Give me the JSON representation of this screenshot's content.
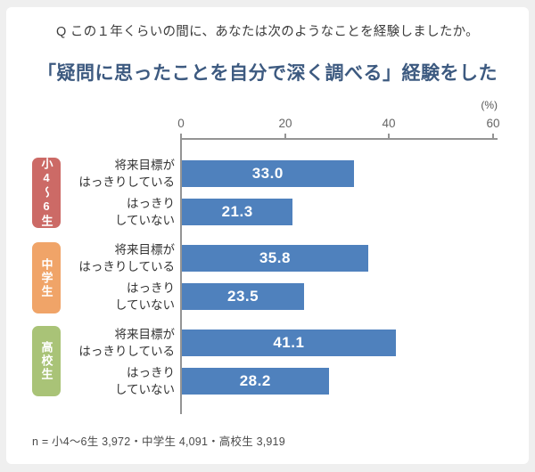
{
  "page": {
    "question": "Q この１年くらいの間に、あなたは次のようなことを経験しましたか。",
    "footnote": "n = 小4〜6生 3,972・中学生 4,091・高校生 3,919"
  },
  "colors": {
    "background": "#efefef",
    "card": "#ffffff",
    "title_text": "#3d5a80",
    "bar": "#4f81bd",
    "badge_elementary": "#cc6a66",
    "badge_junior_high": "#f0a468",
    "badge_high_school": "#a9c377",
    "axis": "#949494"
  },
  "chart_data": {
    "type": "bar",
    "orientation": "horizontal",
    "title": "「疑問に思ったことを自分で深く調べる」経験をした",
    "unit": "%",
    "unit_label": "(%)",
    "xlim": [
      0,
      60
    ],
    "x_ticks": [
      "0",
      "20",
      "40",
      "60"
    ],
    "grid": false,
    "legend": false,
    "bar_color": "#4f81bd",
    "groups": [
      {
        "name": "小4〜6生",
        "badge_color": "#cc6a66",
        "n": "3,972",
        "bars": [
          {
            "label": "将来目標が\nはっきりしている",
            "value": 33.0,
            "display": "33.0"
          },
          {
            "label": "はっきり\nしていない",
            "value": 21.3,
            "display": "21.3"
          }
        ]
      },
      {
        "name": "中学生",
        "badge_color": "#f0a468",
        "n": "4,091",
        "bars": [
          {
            "label": "将来目標が\nはっきりしている",
            "value": 35.8,
            "display": "35.8"
          },
          {
            "label": "はっきり\nしていない",
            "value": 23.5,
            "display": "23.5"
          }
        ]
      },
      {
        "name": "高校生",
        "badge_color": "#a9c377",
        "n": "3,919",
        "bars": [
          {
            "label": "将来目標が\nはっきりしている",
            "value": 41.1,
            "display": "41.1"
          },
          {
            "label": "はっきり\nしていない",
            "value": 28.2,
            "display": "28.2"
          }
        ]
      }
    ]
  }
}
